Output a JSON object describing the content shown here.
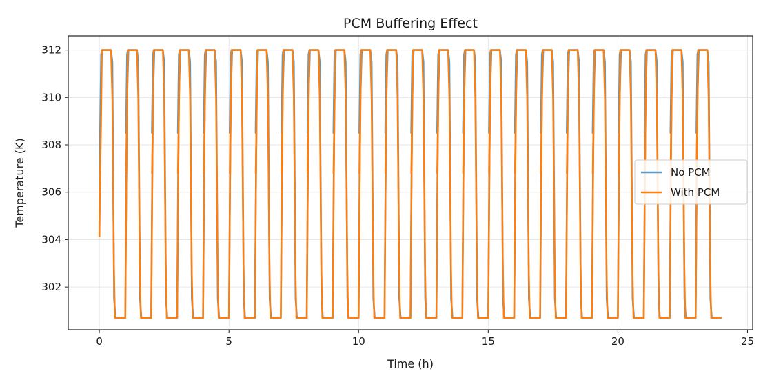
{
  "chart_data": {
    "type": "line",
    "title": "PCM Buffering Effect",
    "xlabel": "Time (h)",
    "ylabel": "Temperature (K)",
    "xlim": [
      -1.2,
      25.2
    ],
    "ylim": [
      300.2,
      312.6
    ],
    "x_ticks": [
      0,
      5,
      10,
      15,
      20,
      25
    ],
    "y_ticks": [
      302,
      304,
      306,
      308,
      310,
      312
    ],
    "grid": true,
    "legend_position": "center-right",
    "cycle_period_h": 1.0,
    "series": [
      {
        "name": "No PCM",
        "color": "#5b9ac4",
        "x": [
          0,
          0.03,
          0.07,
          0.1,
          0.45,
          0.5,
          0.57,
          0.62,
          1.0,
          1.04,
          1.08,
          1.12
        ],
        "y": [
          304.1,
          308.5,
          311.8,
          312.0,
          312.0,
          311.5,
          301.5,
          300.7,
          300.7,
          306.5,
          311.5,
          312.0
        ],
        "y_high": 312.0,
        "y_low": 300.7
      },
      {
        "name": "With PCM",
        "color": "#ff7f0e",
        "x": [
          0,
          0.03,
          0.06,
          0.1,
          0.45,
          0.5,
          0.56,
          0.6,
          1.0,
          1.03,
          1.06,
          1.1
        ],
        "y": [
          304.1,
          306.8,
          308.5,
          312.0,
          312.0,
          310.0,
          303.0,
          300.7,
          300.7,
          305.0,
          308.5,
          312.0
        ],
        "y_high": 312.0,
        "y_low": 300.7
      }
    ],
    "x_end": 24.0
  }
}
